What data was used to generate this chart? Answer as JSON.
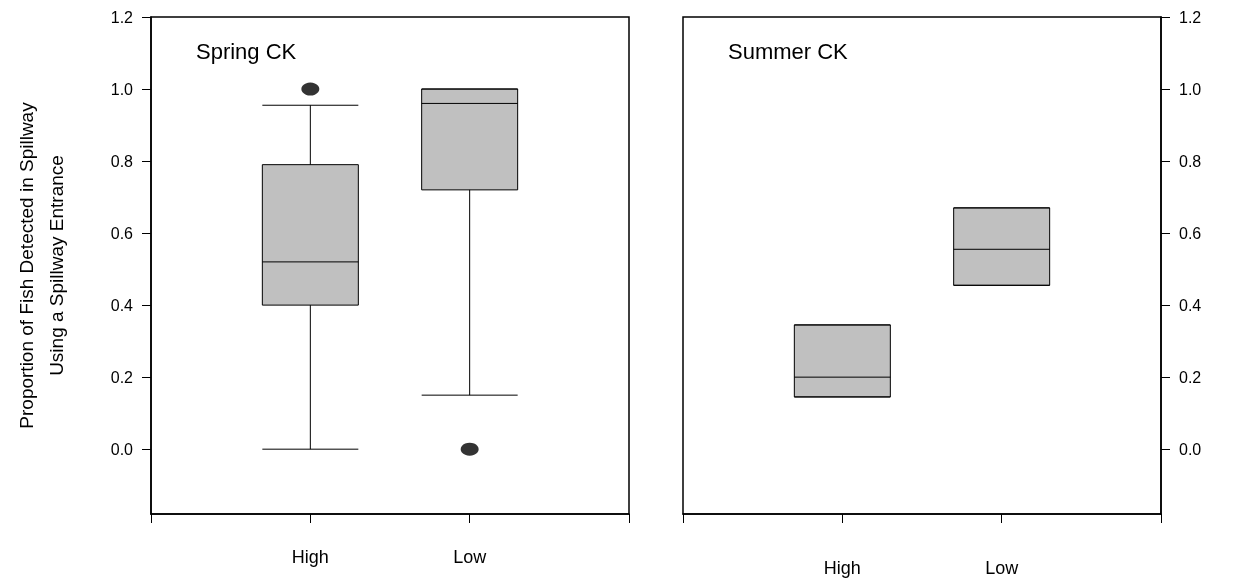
{
  "chart_data": [
    {
      "type": "box",
      "title": "Spring CK",
      "ylabel": "Proportion of Fish Detected in Spillway\nUsing a Spillway Entrance",
      "categories": [
        "High",
        "Low"
      ],
      "color": "#c0c0c0",
      "boxes": [
        {
          "low": 0.0,
          "q1": 0.4,
          "median": 0.52,
          "q3": 0.79,
          "high": 0.955,
          "outliers": [
            1.0
          ]
        },
        {
          "low": 0.15,
          "q1": 0.72,
          "median": 0.96,
          "q3": 1.0,
          "high": 1.0,
          "outliers": [
            0.0
          ]
        }
      ],
      "ylim": [
        -0.18,
        1.2
      ],
      "yticks": [
        {
          "value": 0,
          "label": "0.0"
        },
        {
          "value": 0.2,
          "label": "0.2"
        },
        {
          "value": 0.4,
          "label": "0.4"
        },
        {
          "value": 0.6,
          "label": "0.6"
        },
        {
          "value": 0.8,
          "label": "0.8"
        },
        {
          "value": 1.0,
          "label": "1.0"
        },
        {
          "value": 1.2,
          "label": "1.2"
        }
      ]
    },
    {
      "type": "box",
      "title": "Summer CK",
      "categories": [
        "High",
        "Low"
      ],
      "color": "#c0c0c0",
      "boxes": [
        {
          "low": 0.145,
          "q1": 0.145,
          "median": 0.2,
          "q3": 0.345,
          "high": 0.345
        },
        {
          "low": 0.455,
          "q1": 0.455,
          "median": 0.555,
          "q3": 0.67,
          "high": 0.67
        }
      ],
      "ylim": [
        -0.18,
        1.2
      ],
      "yticks": [
        {
          "value": 0,
          "label": "0.0"
        },
        {
          "value": 0.2,
          "label": "0.2"
        },
        {
          "value": 0.4,
          "label": "0.4"
        },
        {
          "value": 0.6,
          "label": "0.6"
        },
        {
          "value": 0.8,
          "label": "0.8"
        },
        {
          "value": 1.0,
          "label": "1.0"
        },
        {
          "value": 1.2,
          "label": "1.2"
        }
      ]
    }
  ]
}
